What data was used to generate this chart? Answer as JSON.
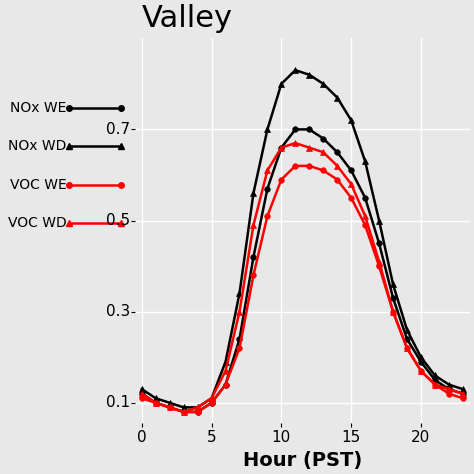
{
  "title": "Valley",
  "xlabel": "Hour (PST)",
  "legend_labels": [
    "NOx WE",
    "NOx WD",
    "VOC WE",
    "VOC WD"
  ],
  "hours": [
    0,
    1,
    2,
    3,
    4,
    5,
    6,
    7,
    8,
    9,
    10,
    11,
    12,
    13,
    14,
    15,
    16,
    17,
    18,
    19,
    20,
    21,
    22,
    23
  ],
  "nox_wd": [
    0.13,
    0.11,
    0.1,
    0.09,
    0.09,
    0.11,
    0.19,
    0.34,
    0.56,
    0.7,
    0.8,
    0.83,
    0.82,
    0.8,
    0.77,
    0.72,
    0.63,
    0.5,
    0.36,
    0.26,
    0.2,
    0.16,
    0.14,
    0.13
  ],
  "nox_we": [
    0.12,
    0.1,
    0.09,
    0.08,
    0.08,
    0.1,
    0.14,
    0.24,
    0.42,
    0.57,
    0.66,
    0.7,
    0.7,
    0.68,
    0.65,
    0.61,
    0.55,
    0.45,
    0.33,
    0.24,
    0.19,
    0.15,
    0.13,
    0.12
  ],
  "voc_wd": [
    0.12,
    0.1,
    0.09,
    0.08,
    0.09,
    0.11,
    0.17,
    0.3,
    0.49,
    0.61,
    0.66,
    0.67,
    0.66,
    0.65,
    0.62,
    0.58,
    0.51,
    0.41,
    0.3,
    0.22,
    0.17,
    0.14,
    0.13,
    0.12
  ],
  "voc_we": [
    0.11,
    0.1,
    0.09,
    0.08,
    0.08,
    0.1,
    0.14,
    0.22,
    0.38,
    0.51,
    0.59,
    0.62,
    0.62,
    0.61,
    0.59,
    0.55,
    0.49,
    0.4,
    0.3,
    0.22,
    0.17,
    0.14,
    0.12,
    0.11
  ],
  "plot_bg": "#e8e8e8",
  "left_bg": "#f0f0f0",
  "grid_color": "white",
  "ylim": [
    0.055,
    0.9
  ],
  "ytick_positions": [
    0.1,
    0.3,
    0.5,
    0.7
  ],
  "xticks": [
    0,
    5,
    10,
    15,
    20
  ],
  "title_fontsize": 22,
  "xlabel_fontsize": 14,
  "tick_fontsize": 11,
  "legend_fontsize": 10,
  "ms": 4,
  "lw": 1.8
}
